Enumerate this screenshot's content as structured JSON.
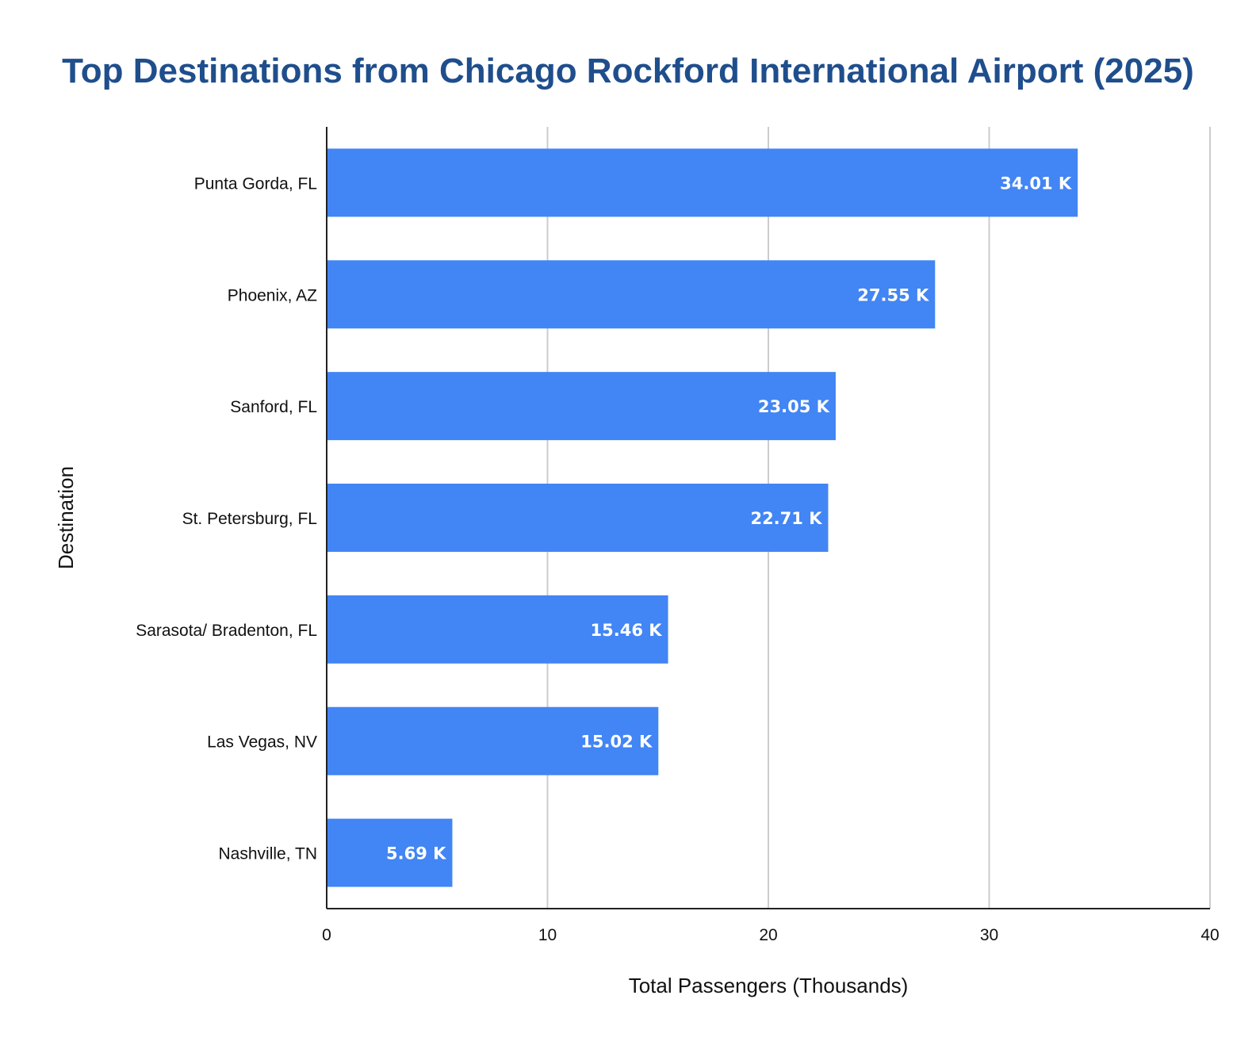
{
  "chart_data": {
    "type": "bar",
    "orientation": "horizontal",
    "title": "Top Destinations from Chicago Rockford International Airport (2025)",
    "xlabel": "Total Passengers (Thousands)",
    "ylabel": "Destination",
    "categories": [
      "Punta Gorda, FL",
      "Phoenix, AZ",
      "Sanford, FL",
      "St. Petersburg, FL",
      "Sarasota/ Bradenton, FL",
      "Las Vegas, NV",
      "Nashville, TN"
    ],
    "values": [
      34.01,
      27.55,
      23.05,
      22.71,
      15.46,
      15.02,
      5.69
    ],
    "data_labels": [
      "34.01 K",
      "27.55 K",
      "23.05 K",
      "22.71 K",
      "15.46 K",
      "15.02 K",
      "5.69 K"
    ],
    "xlim": [
      0,
      40
    ],
    "xticks": [
      0,
      10,
      20,
      30,
      40
    ],
    "xtick_labels": [
      "0",
      "10",
      "20",
      "30",
      "40"
    ],
    "grid": true,
    "legend": "none",
    "bar_color": "#4285f4",
    "title_color": "#1f4e8c",
    "grid_color": "#cccccc"
  }
}
